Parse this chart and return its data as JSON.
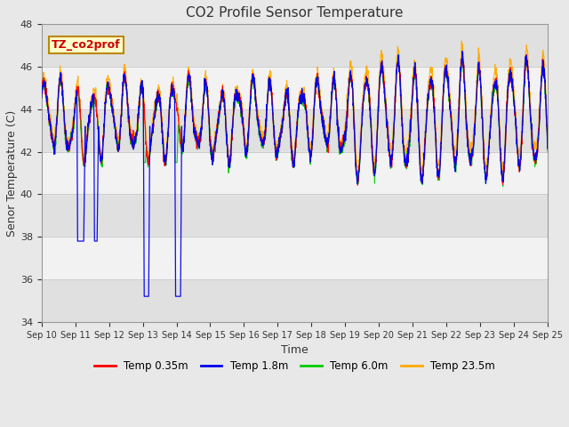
{
  "title": "CO2 Profile Sensor Temperature",
  "xlabel": "Time",
  "ylabel": "Senor Temperature (C)",
  "ylim": [
    34,
    48
  ],
  "xlim": [
    0,
    15
  ],
  "fig_bg_color": "#e8e8e8",
  "plot_bg_color": "#e0e0e0",
  "x_labels": [
    "Sep 10",
    "Sep 11",
    "Sep 12",
    "Sep 13",
    "Sep 14",
    "Sep 15",
    "Sep 16",
    "Sep 17",
    "Sep 18",
    "Sep 19",
    "Sep 20",
    "Sep 21",
    "Sep 22",
    "Sep 23",
    "Sep 24",
    "Sep 25"
  ],
  "colors": {
    "temp035": "#ff0000",
    "temp18": "#0000ee",
    "temp60": "#00cc00",
    "temp235": "#ffaa00"
  },
  "legend_labels": [
    "Temp 0.35m",
    "Temp 1.8m",
    "Temp 6.0m",
    "Temp 23.5m"
  ],
  "annotation_text": "TZ_co2prof",
  "annotation_color": "#cc0000",
  "annotation_bg": "#ffffcc",
  "annotation_border": "#bb8800"
}
